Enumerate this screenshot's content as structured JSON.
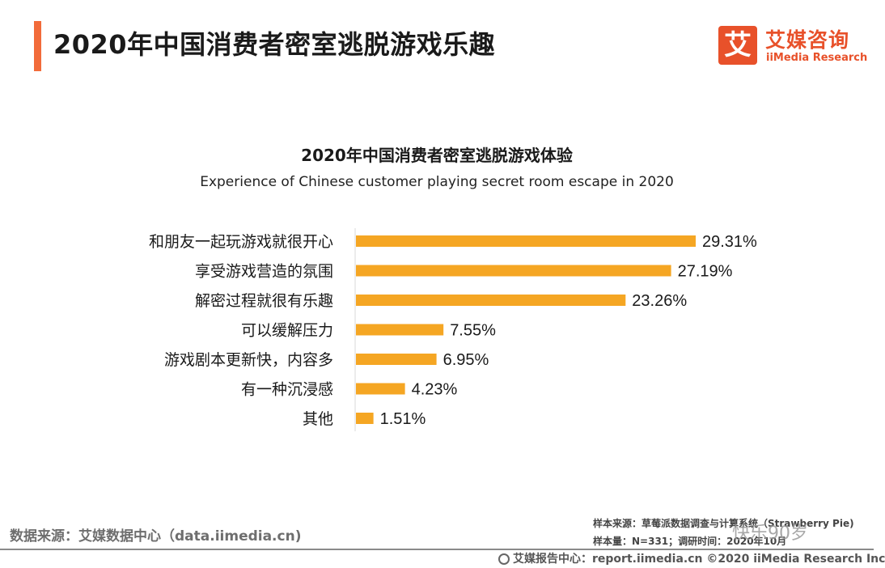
{
  "page_title": "2020年中国消费者密室逃脱游戏乐趣",
  "logo": {
    "mark": "艾",
    "name_cn": "艾媒咨询",
    "name_en": "iiMedia Research"
  },
  "colors": {
    "accent": "#f26b3a",
    "bar": "#f5a623",
    "brand": "#e8512a"
  },
  "chart_data": {
    "type": "bar",
    "orientation": "horizontal",
    "title": "2020年中国消费者密室逃脱游戏体验",
    "subtitle": "Experience of Chinese customer playing secret room escape in 2020",
    "categories": [
      "和朋友一起玩游戏就很开心",
      "享受游戏营造的氛围",
      "解密过程就很有乐趣",
      "可以缓解压力",
      "游戏剧本更新快，内容多",
      "有一种沉浸感",
      "其他"
    ],
    "values": [
      29.31,
      27.19,
      23.26,
      7.55,
      6.95,
      4.23,
      1.51
    ],
    "value_labels": [
      "29.31%",
      "27.19%",
      "23.26%",
      "7.55%",
      "6.95%",
      "4.23%",
      "1.51%"
    ],
    "unit": "%",
    "xlim": [
      0,
      30
    ],
    "grid": false,
    "legend": "none"
  },
  "source": "数据来源：艾媒数据中心（data.iimedia.cn)",
  "sample_note": {
    "line1": "样本来源：草莓派数据调查与计算系统（Strawberry Pie)",
    "line2": "样本量：N=331；调研时间：2020年10月"
  },
  "watermark": "快乐90岁",
  "footer": "艾媒报告中心：report.iimedia.cn  ©2020  iiMedia Research Inc"
}
